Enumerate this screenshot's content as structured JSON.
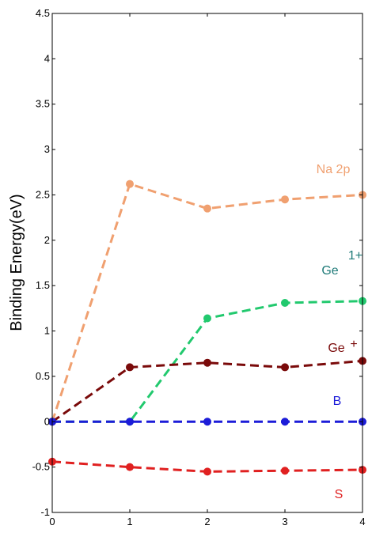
{
  "chart_data": {
    "type": "line",
    "title": "",
    "xlabel": "",
    "ylabel": "Binding Energy(eV)",
    "xlim": [
      0,
      4
    ],
    "ylim": [
      -1,
      4.5
    ],
    "x_ticks": [
      0,
      1,
      2,
      3,
      4
    ],
    "y_ticks": [
      -1,
      -0.5,
      0,
      0.5,
      1,
      1.5,
      2,
      2.5,
      3,
      3.5,
      4,
      4.5
    ],
    "grid": false,
    "x": [
      0,
      1,
      2,
      3,
      4
    ],
    "series": [
      {
        "name": "Na 2p",
        "color": "#f0a070",
        "values": [
          0,
          2.62,
          2.35,
          2.45,
          2.5
        ]
      },
      {
        "name": "Ge 1+",
        "color": "#22c96e",
        "values": [
          0,
          0,
          1.14,
          1.31,
          1.33
        ]
      },
      {
        "name": "Ge +",
        "color": "#7a0a0a",
        "values": [
          0,
          0.6,
          0.65,
          0.6,
          0.67
        ]
      },
      {
        "name": "B",
        "color": "#1c1cd8",
        "values": [
          0,
          0,
          0,
          0,
          0
        ]
      },
      {
        "name": "S",
        "color": "#e02020",
        "values": [
          -0.44,
          -0.5,
          -0.55,
          -0.54,
          -0.53
        ]
      }
    ],
    "annotations": [
      {
        "id": "na2p",
        "text": "Na 2p",
        "color": "#f0a070"
      },
      {
        "id": "ge1_base",
        "text": "Ge",
        "color": "#1e7a78"
      },
      {
        "id": "ge1_sup",
        "text": "1+",
        "color": "#1e7a78"
      },
      {
        "id": "geplus_base",
        "text": "Ge",
        "color": "#7a0a0a"
      },
      {
        "id": "geplus_sup",
        "text": "+",
        "color": "#7a0a0a"
      },
      {
        "id": "b",
        "text": "B",
        "color": "#1c1cd8"
      },
      {
        "id": "s",
        "text": "S",
        "color": "#e02020"
      }
    ]
  }
}
